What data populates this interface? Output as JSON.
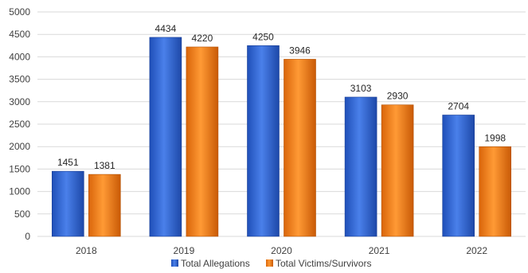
{
  "chart_data": {
    "type": "bar",
    "categories": [
      "2018",
      "2019",
      "2020",
      "2021",
      "2022"
    ],
    "series": [
      {
        "name": "Total Allegations",
        "values": [
          1451,
          4434,
          4250,
          3103,
          2704
        ],
        "color": "#2e62d4"
      },
      {
        "name": "Total Victims/Survivors",
        "values": [
          1381,
          4220,
          3946,
          2930,
          1998
        ],
        "color": "#f07a10"
      }
    ],
    "yticks": [
      "0",
      "500",
      "1000",
      "1500",
      "2000",
      "2500",
      "3000",
      "3500",
      "4000",
      "4500",
      "5000"
    ],
    "ylim": [
      0,
      5000
    ],
    "grid": true,
    "data_labels": true,
    "legend_position": "bottom"
  }
}
